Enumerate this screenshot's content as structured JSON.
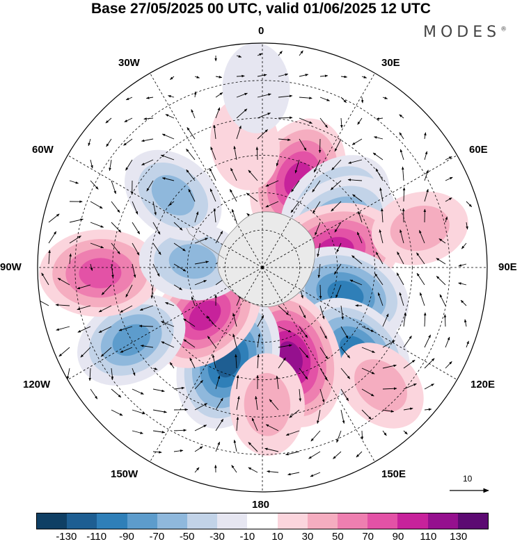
{
  "title": "Base 27/05/2025 00 UTC, valid 01/06/2025 12 UTC",
  "brand": "MODES",
  "brand_mark": "®",
  "longitude_labels": {
    "n0": "0",
    "e30": "30E",
    "e60": "60E",
    "e90": "90E",
    "e120": "120E",
    "e150": "150E",
    "s180": "180",
    "w150": "150W",
    "w120": "120W",
    "w90": "90W",
    "w60": "60W",
    "w30": "30W"
  },
  "reference_vector": {
    "label": "10"
  },
  "colorbar": {
    "colors": [
      "#0f3f64",
      "#1e5e92",
      "#2f7fb8",
      "#5d9ccc",
      "#8fb8dc",
      "#c2d3e8",
      "#e6e6f1",
      "#ffffff",
      "#fbd5dd",
      "#f5adc0",
      "#ee7fb0",
      "#e352a6",
      "#c7229b",
      "#95108e",
      "#5c0a72"
    ],
    "labels": [
      "-130",
      "-110",
      "-90",
      "-70",
      "-50",
      "-30",
      "-10",
      "10",
      "30",
      "50",
      "70",
      "90",
      "110",
      "130"
    ]
  },
  "anomaly_centers": [
    {
      "lat": -52,
      "lon": 22,
      "value": 95
    },
    {
      "lat": -52,
      "lon": 50,
      "value": -85
    },
    {
      "lat": -55,
      "lon": 60,
      "value": -85
    },
    {
      "lat": -60,
      "lon": 77,
      "value": 105
    },
    {
      "lat": -55,
      "lon": 108,
      "value": -100
    },
    {
      "lat": -40,
      "lon": 132,
      "value": -90
    },
    {
      "lat": -52,
      "lon": 163,
      "value": 125
    },
    {
      "lat": -50,
      "lon": -160,
      "value": -120
    },
    {
      "lat": -60,
      "lon": -130,
      "value": 90
    },
    {
      "lat": -30,
      "lon": -119,
      "value": -70
    },
    {
      "lat": -25,
      "lon": -92,
      "value": 85
    },
    {
      "lat": -62,
      "lon": -85,
      "value": -55
    },
    {
      "lat": -44,
      "lon": -51,
      "value": -55
    },
    {
      "lat": -40,
      "lon": -8,
      "value": 25
    },
    {
      "lat": -35,
      "lon": 178,
      "value": 45
    },
    {
      "lat": -23,
      "lon": 135,
      "value": 35
    },
    {
      "lat": -25,
      "lon": 76,
      "value": 35
    },
    {
      "lat": -18,
      "lon": -2,
      "value": -20
    }
  ]
}
